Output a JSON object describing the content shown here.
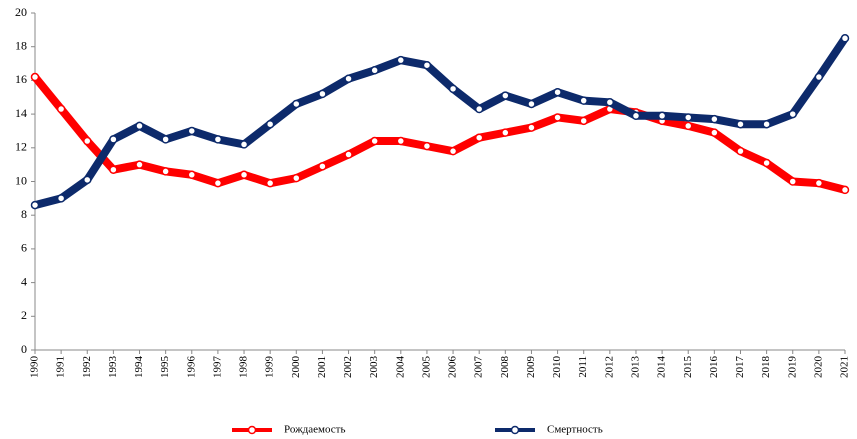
{
  "chart_data": {
    "type": "line",
    "categories": [
      "1990",
      "1991",
      "1992",
      "1993",
      "1994",
      "1995",
      "1996",
      "1997",
      "1998",
      "1999",
      "2000",
      "2001",
      "2002",
      "2003",
      "2004",
      "2005",
      "2006",
      "2007",
      "2008",
      "2009",
      "2010",
      "2011",
      "2012",
      "2013",
      "2014",
      "2015",
      "2016",
      "2017",
      "2018",
      "2019",
      "2020",
      "2021"
    ],
    "series": [
      {
        "name": "Рождаемость",
        "color": "#ff0000",
        "values": [
          16.2,
          14.3,
          12.4,
          10.7,
          11.0,
          10.6,
          10.4,
          9.9,
          10.4,
          9.9,
          10.2,
          10.9,
          11.6,
          12.4,
          12.4,
          12.1,
          11.8,
          12.6,
          12.9,
          13.2,
          13.8,
          13.6,
          14.3,
          14.1,
          13.6,
          13.3,
          12.9,
          11.8,
          11.1,
          10.0,
          9.9,
          9.5
        ]
      },
      {
        "name": "Смертность",
        "color": "#0d2a6b",
        "values": [
          8.6,
          9.0,
          10.1,
          12.5,
          13.3,
          12.5,
          13.0,
          12.5,
          12.2,
          13.4,
          14.6,
          15.2,
          16.1,
          16.6,
          17.2,
          16.9,
          15.5,
          14.3,
          15.1,
          14.6,
          15.3,
          14.8,
          14.7,
          13.9,
          13.9,
          13.8,
          13.7,
          13.4,
          13.4,
          14.0,
          16.2,
          18.5
        ]
      }
    ],
    "ylim": [
      0,
      20
    ],
    "yticks": [
      0,
      2,
      4,
      6,
      8,
      10,
      12,
      14,
      16,
      18,
      20
    ],
    "grid": false,
    "legend": "bottom"
  }
}
